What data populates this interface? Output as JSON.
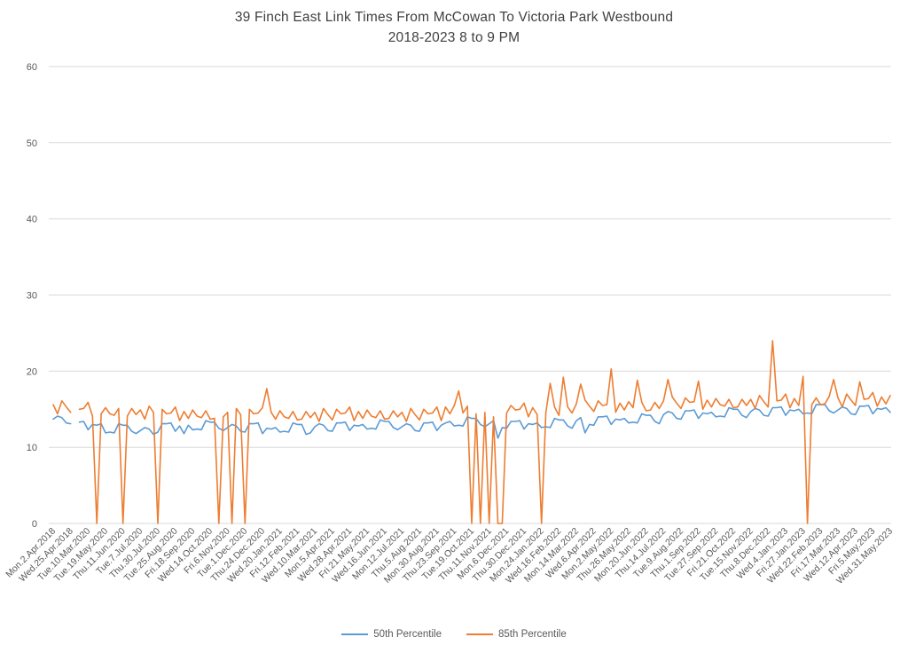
{
  "chart_data": {
    "type": "line",
    "title_line1": "39 Finch East Link Times From McCowan To Victoria Park Westbound",
    "title_line2": "2018-2023 8 to 9 PM",
    "xlabel": "",
    "ylabel": "",
    "ylim": [
      0,
      60
    ],
    "ytick_step": 10,
    "grid": "horizontal",
    "legend_position": "bottom",
    "colors": {
      "grid": "#D9D9D9",
      "text": "#595959",
      "title": "#404040",
      "background": "#FFFFFF"
    },
    "points_per_tick": 4,
    "x_tick_labels": [
      "Mon.2.Apr.2018",
      "Wed.25.Apr.2018",
      "Tue.10.Mar.2020",
      "Tue.19.May.2020",
      "Thu.11.Jun.2020",
      "Tue.7.Jul.2020",
      "Thu.30.Jul.2020",
      "Tue.25.Aug.2020",
      "Fri.18.Sep.2020",
      "Wed.14.Oct.2020",
      "Fri.6.Nov.2020",
      "Tue.1.Dec.2020",
      "Thu.24.Dec.2020",
      "Wed.20.Jan.2021",
      "Fri.12.Feb.2021",
      "Wed.10.Mar.2021",
      "Mon.5.Apr.2021",
      "Wed.28.Apr.2021",
      "Fri.21.May.2021",
      "Wed.16.Jun.2021",
      "Mon.12.Jul.2021",
      "Thu.5.Aug.2021",
      "Mon.30.Aug.2021",
      "Thu.23.Sep.2021",
      "Tue.19.Oct.2021",
      "Thu.11.Nov.2021",
      "Mon.6.Dec.2021",
      "Thu.30.Dec.2021",
      "Mon.24.Jan.2022",
      "Wed.16.Feb.2022",
      "Mon.14.Mar.2022",
      "Wed.6.Apr.2022",
      "Mon.2.May.2022",
      "Thu.26.May.2022",
      "Mon.20.Jun.2022",
      "Thu.14.Jul.2022",
      "Tue.9.Aug.2022",
      "Thu.1.Sep.2022",
      "Tue.27.Sep.2022",
      "Fri.21.Oct.2022",
      "Tue.15.Nov.2022",
      "Thu.8.Dec.2022",
      "Wed.4.Jan.2023",
      "Fri.27.Jan.2023",
      "Wed.22.Feb.2023",
      "Fri.17.Mar.2023",
      "Wed.12.Apr.2023",
      "Fri.5.May.2023",
      "Wed.31.May.2023"
    ],
    "series": [
      {
        "name": "50th Percentile",
        "color": "#5B9BD5",
        "values": [
          13.7,
          14.1,
          13.9,
          13.2,
          13.1,
          null,
          13.3,
          13.4,
          12.3,
          13.0,
          12.9,
          13.1,
          11.9,
          12.0,
          11.9,
          13.1,
          12.9,
          12.9,
          12.1,
          11.8,
          12.2,
          12.6,
          12.4,
          11.7,
          12.0,
          13.1,
          13.1,
          13.2,
          12.1,
          12.8,
          11.8,
          12.9,
          12.3,
          12.4,
          12.3,
          13.5,
          13.3,
          13.3,
          12.5,
          12.2,
          12.6,
          13.0,
          12.8,
          12.1,
          12.0,
          13.1,
          13.1,
          13.2,
          11.8,
          12.5,
          12.4,
          12.6,
          12.0,
          12.1,
          12.0,
          13.2,
          13.0,
          13.0,
          11.7,
          11.9,
          12.7,
          13.1,
          12.9,
          12.2,
          12.1,
          13.2,
          13.2,
          13.3,
          12.2,
          12.9,
          12.8,
          13.0,
          12.4,
          12.5,
          12.4,
          13.6,
          13.4,
          13.4,
          12.6,
          12.3,
          12.7,
          13.1,
          12.9,
          12.2,
          12.1,
          13.2,
          13.2,
          13.3,
          12.2,
          12.9,
          13.2,
          13.4,
          12.8,
          12.9,
          12.8,
          14.0,
          13.8,
          13.8,
          13.0,
          12.7,
          13.1,
          13.5,
          11.2,
          12.6,
          12.5,
          13.4,
          13.4,
          13.5,
          12.4,
          13.1,
          13.0,
          13.2,
          12.6,
          12.7,
          12.6,
          13.8,
          13.6,
          13.6,
          12.8,
          12.5,
          13.5,
          13.9,
          11.9,
          13.0,
          12.9,
          14.0,
          14.0,
          14.1,
          13.0,
          13.7,
          13.6,
          13.8,
          13.2,
          13.3,
          13.2,
          14.4,
          14.2,
          14.2,
          13.4,
          13.1,
          14.3,
          14.7,
          14.5,
          13.8,
          13.7,
          14.8,
          14.8,
          14.9,
          13.8,
          14.5,
          14.4,
          14.6,
          14.0,
          14.1,
          14.0,
          15.2,
          15.0,
          15.0,
          14.2,
          13.9,
          14.7,
          15.1,
          14.9,
          14.2,
          14.1,
          15.2,
          15.2,
          15.3,
          14.2,
          14.9,
          14.8,
          15.0,
          14.4,
          14.5,
          14.4,
          15.6,
          15.6,
          15.6,
          14.8,
          14.5,
          14.9,
          15.3,
          15.1,
          14.4,
          14.3,
          15.4,
          15.4,
          15.5,
          14.4,
          15.1,
          15.0,
          15.2,
          14.6
        ]
      },
      {
        "name": "85th Percentile",
        "color": "#ED7D31",
        "values": [
          15.6,
          14.4,
          16.1,
          15.3,
          14.6,
          null,
          15.0,
          15.1,
          15.9,
          14.1,
          0,
          14.4,
          15.2,
          14.4,
          14.2,
          15.1,
          0,
          14.1,
          15.1,
          14.3,
          14.9,
          13.7,
          15.4,
          14.6,
          0,
          15.0,
          14.4,
          14.5,
          15.3,
          13.5,
          14.7,
          13.8,
          14.9,
          14.1,
          13.9,
          14.8,
          13.7,
          13.8,
          0,
          14.0,
          14.6,
          0,
          15.1,
          14.3,
          0,
          15.0,
          14.4,
          14.5,
          15.2,
          17.7,
          14.6,
          13.7,
          14.8,
          14.0,
          13.8,
          14.7,
          13.6,
          13.7,
          14.7,
          13.9,
          14.6,
          13.4,
          15.1,
          14.3,
          13.6,
          15.0,
          14.4,
          14.5,
          15.3,
          13.5,
          14.7,
          13.8,
          14.9,
          14.1,
          13.9,
          14.8,
          13.7,
          13.8,
          14.8,
          14.0,
          14.6,
          13.4,
          15.1,
          14.3,
          13.6,
          15.0,
          14.4,
          14.5,
          15.3,
          13.5,
          15.3,
          14.4,
          15.5,
          17.4,
          14.5,
          15.4,
          0,
          14.4,
          0,
          14.6,
          0,
          14.0,
          0,
          0,
          14.5,
          15.5,
          14.9,
          15.0,
          15.8,
          14.0,
          15.2,
          14.3,
          0,
          14.6,
          18.4,
          15.3,
          14.2,
          19.2,
          15.3,
          14.5,
          15.7,
          18.3,
          16.2,
          15.4,
          14.7,
          16.1,
          15.5,
          15.6,
          20.3,
          14.6,
          15.8,
          14.9,
          16.0,
          15.2,
          18.8,
          15.9,
          14.8,
          14.9,
          15.9,
          15.1,
          16.1,
          18.9,
          16.6,
          15.8,
          15.1,
          16.5,
          15.9,
          16.0,
          18.7,
          15.0,
          16.2,
          15.3,
          16.4,
          15.6,
          15.4,
          16.3,
          15.2,
          15.3,
          16.3,
          15.5,
          16.3,
          15.1,
          16.8,
          16.0,
          15.3,
          24.0,
          16.1,
          16.2,
          17.0,
          15.2,
          16.4,
          15.5,
          19.3,
          0,
          15.6,
          16.5,
          15.6,
          15.7,
          16.7,
          18.9,
          16.5,
          15.3,
          17.0,
          16.2,
          15.5,
          18.6,
          16.3,
          16.4,
          17.2,
          15.4,
          16.6,
          15.7,
          16.8
        ]
      }
    ]
  },
  "y_axis_tick_labels": [
    "0",
    "10",
    "20",
    "30",
    "40",
    "50",
    "60"
  ],
  "legend": {
    "items": [
      {
        "label": "50th Percentile",
        "color": "#5B9BD5"
      },
      {
        "label": "85th Percentile",
        "color": "#ED7D31"
      }
    ]
  }
}
